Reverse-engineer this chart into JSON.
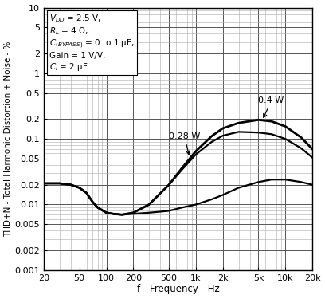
{
  "xlabel": "f - Frequency - Hz",
  "ylabel": "THD+N - Total Harmonic Distortion + Noise - %",
  "xlim": [
    20,
    20000
  ],
  "ylim": [
    0.001,
    10
  ],
  "background_color": "#ffffff",
  "line_color": "#000000",
  "freq_04w": [
    20,
    30,
    40,
    50,
    60,
    70,
    80,
    100,
    120,
    150,
    200,
    300,
    500,
    700,
    1000,
    1500,
    2000,
    3000,
    5000,
    7000,
    10000,
    15000,
    20000
  ],
  "thd_04w": [
    0.021,
    0.021,
    0.02,
    0.018,
    0.015,
    0.011,
    0.009,
    0.0075,
    0.0072,
    0.007,
    0.0075,
    0.01,
    0.02,
    0.036,
    0.065,
    0.11,
    0.145,
    0.175,
    0.195,
    0.185,
    0.155,
    0.105,
    0.07
  ],
  "freq_028w": [
    20,
    30,
    40,
    50,
    60,
    70,
    80,
    100,
    120,
    150,
    200,
    300,
    500,
    700,
    1000,
    1500,
    2000,
    3000,
    5000,
    7000,
    10000,
    15000,
    20000
  ],
  "thd_028w": [
    0.021,
    0.021,
    0.02,
    0.018,
    0.015,
    0.011,
    0.009,
    0.0075,
    0.0072,
    0.007,
    0.0075,
    0.01,
    0.02,
    0.034,
    0.058,
    0.09,
    0.112,
    0.128,
    0.125,
    0.118,
    0.1,
    0.072,
    0.052
  ],
  "freq_low": [
    20,
    30,
    40,
    50,
    60,
    70,
    80,
    100,
    120,
    150,
    200,
    300,
    500,
    700,
    1000,
    1500,
    2000,
    3000,
    5000,
    7000,
    10000,
    15000,
    20000
  ],
  "thd_low": [
    0.021,
    0.021,
    0.02,
    0.018,
    0.015,
    0.011,
    0.009,
    0.0075,
    0.0072,
    0.007,
    0.0072,
    0.0075,
    0.008,
    0.009,
    0.01,
    0.012,
    0.014,
    0.018,
    0.022,
    0.024,
    0.024,
    0.022,
    0.02
  ],
  "xtick_vals": [
    20,
    50,
    100,
    200,
    500,
    1000,
    2000,
    5000,
    10000,
    20000
  ],
  "xtick_labels": [
    "20",
    "50",
    "100",
    "200",
    "500",
    "1k",
    "2k",
    "5k",
    "10k",
    "20k"
  ],
  "ytick_vals": [
    0.001,
    0.002,
    0.005,
    0.01,
    0.02,
    0.05,
    0.1,
    0.2,
    0.5,
    1,
    2,
    5,
    10
  ],
  "ytick_labels": [
    "0.001",
    "0.002",
    "0.005",
    "0.01",
    "0.02",
    "0.05",
    "0.1",
    "0.2",
    "0.5",
    "1",
    "2",
    "5",
    "10"
  ]
}
